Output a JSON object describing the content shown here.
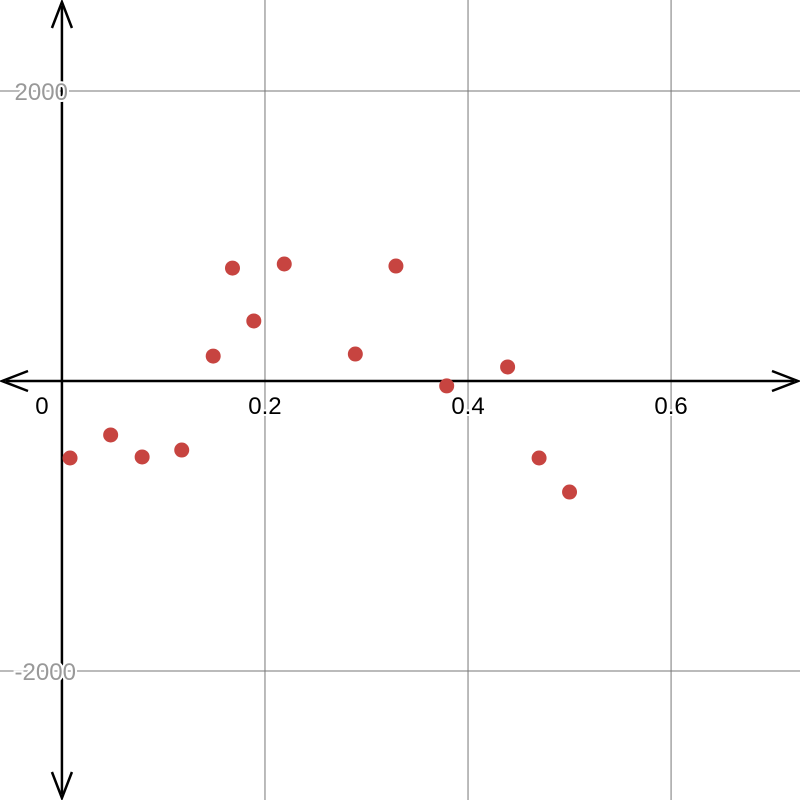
{
  "chart_data": {
    "type": "scatter",
    "title": "",
    "xlabel": "",
    "ylabel": "",
    "xlim": [
      -0.061,
      0.727
    ],
    "ylim": [
      -2890,
      2628
    ],
    "grid": true,
    "x_ticks": [
      {
        "value": 0,
        "label": "0"
      },
      {
        "value": 0.2,
        "label": "0.2"
      },
      {
        "value": 0.4,
        "label": "0.4"
      },
      {
        "value": 0.6,
        "label": "0.6"
      }
    ],
    "y_ticks": [
      {
        "value": 2000,
        "label": "2000"
      },
      {
        "value": -2000,
        "label": "-2000"
      }
    ],
    "point_color": "#c74440",
    "series": [
      {
        "x": [
          0.008,
          0.048,
          0.079,
          0.118,
          0.149,
          0.168,
          0.189,
          0.219,
          0.289,
          0.329,
          0.379,
          0.439,
          0.47,
          0.5
        ],
        "y": [
          -531,
          -372,
          -524,
          -476,
          172,
          779,
          414,
          807,
          186,
          793,
          -34,
          97,
          -531,
          -766
        ]
      }
    ]
  }
}
